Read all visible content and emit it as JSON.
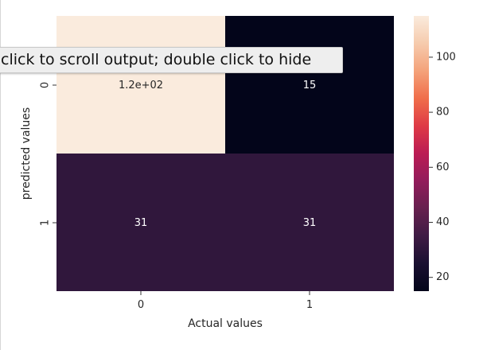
{
  "output_tooltip": "click to scroll output; double click to hide",
  "chart_data": {
    "type": "heatmap",
    "xlabel": "Actual values",
    "ylabel": "predicted values",
    "x_categories": [
      "0",
      "1"
    ],
    "y_categories": [
      "0",
      "1"
    ],
    "values": [
      [
        115,
        15
      ],
      [
        31,
        31
      ]
    ],
    "annotations": [
      [
        "1.2e+02",
        "15"
      ],
      [
        "31",
        "31"
      ]
    ],
    "colorbar": {
      "min": 15,
      "max": 115,
      "ticks": [
        20,
        40,
        60,
        80,
        100
      ],
      "tick_labels": [
        "20",
        "40",
        "60",
        "80",
        "100"
      ]
    },
    "colormap": "rocket",
    "legend": "colorbar-right"
  }
}
